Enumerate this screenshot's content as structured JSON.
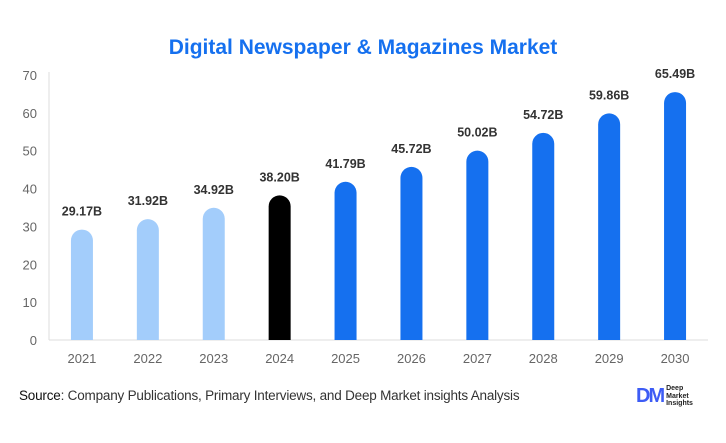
{
  "chart_data": {
    "type": "bar",
    "title": "Digital Newspaper & Magazines Market",
    "categories": [
      "2021",
      "2022",
      "2023",
      "2024",
      "2025",
      "2026",
      "2027",
      "2028",
      "2029",
      "2030"
    ],
    "values": [
      29.17,
      31.92,
      34.92,
      38.2,
      41.79,
      45.72,
      50.02,
      54.72,
      59.86,
      65.49
    ],
    "data_labels": [
      "29.17B",
      "31.92B",
      "34.92B",
      "38.20B",
      "41.79B",
      "45.72B",
      "50.02B",
      "54.72B",
      "59.86B",
      "65.49B"
    ],
    "bar_colors": [
      "#a3cdfb",
      "#a3cdfb",
      "#a3cdfb",
      "#000000",
      "#1570ef",
      "#1570ef",
      "#1570ef",
      "#1570ef",
      "#1570ef",
      "#1570ef"
    ],
    "ylim": [
      0,
      70
    ],
    "yticks": [
      0,
      10,
      20,
      30,
      40,
      50,
      60,
      70
    ],
    "xlabel": "",
    "ylabel": "",
    "grid": false,
    "title_color": "#1570ef"
  },
  "footer": {
    "source_label": "Source",
    "source_text": ": Company Publications, Primary Interviews, and Deep Market insights Analysis",
    "logo_mark": "DM",
    "logo_lines": [
      "Deep",
      "Market",
      "Insights"
    ]
  }
}
